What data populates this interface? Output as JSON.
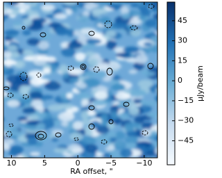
{
  "chart_data": {
    "type": "image",
    "xlabel": "RA offset, \"",
    "xlim": [
      11.2,
      -12.0
    ],
    "xticks": [
      10,
      5,
      0,
      {
        "value": -5,
        "label": "−5"
      },
      {
        "value": -10,
        "label": "−10"
      }
    ],
    "colorbar": {
      "label": "μJy/beam",
      "lim": [
        -63,
        59
      ],
      "ticks": [
        45,
        30,
        15,
        0,
        {
          "value": -15,
          "label": "−15"
        },
        {
          "value": -30,
          "label": "−30"
        },
        {
          "value": -45,
          "label": "−45"
        }
      ],
      "colors": [
        "#f7fbff",
        "#c6dbef",
        "#6baed6",
        "#2171b5",
        "#08306b"
      ]
    }
  }
}
